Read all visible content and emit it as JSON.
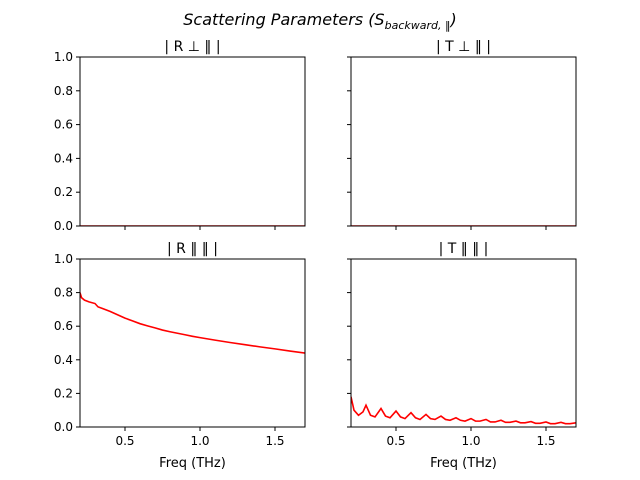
{
  "suptitle": {
    "main": "Scattering Parameters (S",
    "sub": "backward, ‖",
    "close": ")"
  },
  "chart_data": [
    {
      "type": "line",
      "title": "| R ⊥ ‖ |",
      "xlabel": "",
      "ylabel": "",
      "xlim": [
        0.2,
        1.7
      ],
      "ylim": [
        0,
        1
      ],
      "xticks": [
        "0.5",
        "1.0",
        "1.5"
      ],
      "yticks": [
        "0.0",
        "0.2",
        "0.4",
        "0.6",
        "0.8",
        "1.0"
      ],
      "show_xtick_labels": false,
      "show_ytick_labels": true,
      "line_color": "#ff0000",
      "x": [
        0.2,
        0.5,
        1.0,
        1.5,
        1.7
      ],
      "y": [
        0.0,
        0.0,
        0.0,
        0.0,
        0.0
      ]
    },
    {
      "type": "line",
      "title": "| T ⊥ ‖ |",
      "xlabel": "",
      "ylabel": "",
      "xlim": [
        0.2,
        1.7
      ],
      "ylim": [
        0,
        1
      ],
      "xticks": [
        "0.5",
        "1.0",
        "1.5"
      ],
      "yticks": [
        "0.0",
        "0.2",
        "0.4",
        "0.6",
        "0.8",
        "1.0"
      ],
      "show_xtick_labels": false,
      "show_ytick_labels": false,
      "line_color": "#ff0000",
      "x": [
        0.2,
        0.5,
        1.0,
        1.5,
        1.7
      ],
      "y": [
        0.0,
        0.0,
        0.0,
        0.0,
        0.0
      ]
    },
    {
      "type": "line",
      "title": "| R ‖ ‖ |",
      "xlabel": "Freq (THz)",
      "ylabel": "",
      "xlim": [
        0.2,
        1.7
      ],
      "ylim": [
        0,
        1
      ],
      "xticks": [
        "0.5",
        "1.0",
        "1.5"
      ],
      "yticks": [
        "0.0",
        "0.2",
        "0.4",
        "0.6",
        "0.8",
        "1.0"
      ],
      "show_xtick_labels": true,
      "show_ytick_labels": true,
      "line_color": "#ff0000",
      "x": [
        0.2,
        0.21,
        0.23,
        0.26,
        0.3,
        0.32,
        0.35,
        0.4,
        0.45,
        0.5,
        0.55,
        0.6,
        0.65,
        0.7,
        0.75,
        0.8,
        0.85,
        0.9,
        0.95,
        1.0,
        1.1,
        1.2,
        1.3,
        1.4,
        1.5,
        1.6,
        1.7
      ],
      "y": [
        0.8,
        0.77,
        0.755,
        0.745,
        0.735,
        0.715,
        0.705,
        0.688,
        0.668,
        0.648,
        0.632,
        0.615,
        0.602,
        0.59,
        0.577,
        0.567,
        0.558,
        0.549,
        0.54,
        0.532,
        0.517,
        0.503,
        0.49,
        0.477,
        0.465,
        0.452,
        0.44
      ]
    },
    {
      "type": "line",
      "title": "| T ‖ ‖ |",
      "xlabel": "Freq (THz)",
      "ylabel": "",
      "xlim": [
        0.2,
        1.7
      ],
      "ylim": [
        0,
        1
      ],
      "xticks": [
        "0.5",
        "1.0",
        "1.5"
      ],
      "yticks": [
        "0.0",
        "0.2",
        "0.4",
        "0.6",
        "0.8",
        "1.0"
      ],
      "show_xtick_labels": true,
      "show_ytick_labels": false,
      "line_color": "#ff0000",
      "x": [
        0.2,
        0.22,
        0.25,
        0.28,
        0.3,
        0.33,
        0.36,
        0.4,
        0.43,
        0.46,
        0.5,
        0.53,
        0.56,
        0.6,
        0.63,
        0.66,
        0.7,
        0.73,
        0.76,
        0.8,
        0.83,
        0.86,
        0.9,
        0.93,
        0.96,
        1.0,
        1.03,
        1.06,
        1.1,
        1.13,
        1.16,
        1.2,
        1.23,
        1.26,
        1.3,
        1.33,
        1.36,
        1.4,
        1.43,
        1.46,
        1.5,
        1.53,
        1.56,
        1.6,
        1.63,
        1.66,
        1.7
      ],
      "y": [
        0.18,
        0.1,
        0.07,
        0.09,
        0.13,
        0.07,
        0.06,
        0.11,
        0.065,
        0.055,
        0.095,
        0.06,
        0.05,
        0.085,
        0.055,
        0.045,
        0.075,
        0.05,
        0.045,
        0.065,
        0.045,
        0.04,
        0.055,
        0.04,
        0.035,
        0.05,
        0.035,
        0.035,
        0.045,
        0.03,
        0.03,
        0.04,
        0.028,
        0.028,
        0.035,
        0.025,
        0.025,
        0.032,
        0.022,
        0.022,
        0.03,
        0.02,
        0.02,
        0.028,
        0.02,
        0.02,
        0.025
      ]
    }
  ]
}
